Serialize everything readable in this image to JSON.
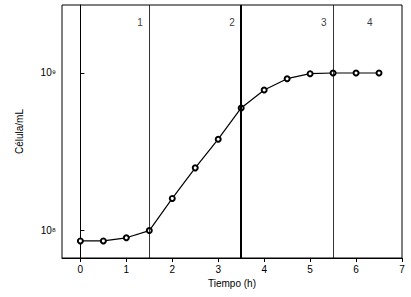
{
  "chart_data": {
    "type": "line",
    "x_label": "Tiempo (h)",
    "y_label": "Célula/mL",
    "log": "y",
    "grid": false,
    "color": "#000000",
    "marker": "circle",
    "x": [
      0,
      0.5,
      1,
      1.5,
      2,
      2.5,
      3,
      3.5,
      4,
      4.5,
      5,
      5.5,
      6,
      6.5
    ],
    "values": [
      86000000,
      86000000,
      90000000,
      100000000,
      160000000,
      250000000,
      380000000,
      600000000,
      780000000,
      920000000,
      990000000,
      1000000000,
      1000000000,
      1000000000
    ],
    "xlim": [
      -0.4,
      7
    ],
    "xticks": [
      0,
      1,
      2,
      3,
      4,
      5,
      6,
      7
    ],
    "ylim": [
      67000000,
      2700000000
    ],
    "yticks": [
      {
        "value": 100000000,
        "label": "10⁸"
      },
      {
        "value": 1000000000,
        "label": "10⁹"
      }
    ],
    "phase_lines": [
      1.5,
      3.5,
      5.5
    ],
    "annotations": [
      {
        "text": "1",
        "x": 1.3,
        "y": 2100000000
      },
      {
        "text": "2",
        "x": 3.3,
        "y": 2100000000
      },
      {
        "text": "3",
        "x": 5.3,
        "y": 2100000000
      },
      {
        "text": "4",
        "x": 6.3,
        "y": 2100000000
      }
    ]
  }
}
